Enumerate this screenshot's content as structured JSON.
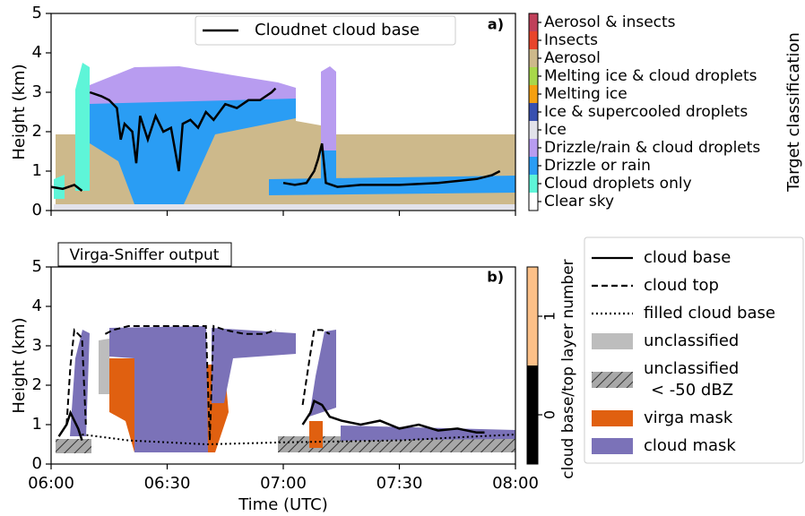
{
  "chart_data": [
    {
      "type": "line",
      "panel_label": "a)",
      "ylabel": "Height (km)",
      "xlim": [
        "06:00",
        "08:00"
      ],
      "ylim": [
        0,
        5
      ],
      "yticks": [
        0,
        1,
        2,
        3,
        4,
        5
      ],
      "legend": "upper center",
      "series": [
        {
          "name": "Cloudnet cloud base",
          "color": "#000000",
          "style": "solid",
          "x": [
            "06:00",
            "06:03",
            "06:06",
            "06:08",
            "06:09",
            "06:10",
            "06:13",
            "06:15",
            "06:17",
            "06:18",
            "06:19",
            "06:21",
            "06:22",
            "06:23",
            "06:25",
            "06:27",
            "06:29",
            "06:31",
            "06:33",
            "06:34",
            "06:36",
            "06:38",
            "06:40",
            "06:42",
            "06:45",
            "06:48",
            "06:51",
            "06:54",
            "06:57",
            "06:58",
            "06:59",
            "07:00",
            "07:03",
            "07:06",
            "07:08",
            "07:09",
            "07:10",
            "07:11",
            "07:14",
            "07:20",
            "07:30",
            "07:40",
            "07:50",
            "07:54",
            "07:56"
          ],
          "values": [
            0.6,
            0.55,
            0.65,
            0.5,
            null,
            3.0,
            2.9,
            2.8,
            2.6,
            1.8,
            2.2,
            2.0,
            1.2,
            2.4,
            1.8,
            2.4,
            2.0,
            2.1,
            1.0,
            2.2,
            2.3,
            2.1,
            2.5,
            2.3,
            2.7,
            2.6,
            2.8,
            2.8,
            3.0,
            3.1,
            null,
            0.7,
            0.65,
            0.7,
            1.0,
            1.3,
            1.7,
            0.7,
            0.6,
            0.65,
            0.65,
            0.7,
            0.8,
            0.9,
            1.0
          ]
        }
      ],
      "colorbar": {
        "label": "Target classification",
        "classes": [
          {
            "name": "Aerosol & insects",
            "color": "#c0405a"
          },
          {
            "name": "Insects",
            "color": "#e8442a"
          },
          {
            "name": "Aerosol",
            "color": "#cdb98b"
          },
          {
            "name": "Melting ice & cloud droplets",
            "color": "#a8d84a"
          },
          {
            "name": "Melting ice",
            "color": "#f5a010"
          },
          {
            "name": "Ice & supercooled droplets",
            "color": "#3850b0"
          },
          {
            "name": "Ice",
            "color": "#e2e2ea"
          },
          {
            "name": "Drizzle/rain & cloud droplets",
            "color": "#b89cf0"
          },
          {
            "name": "Drizzle or rain",
            "color": "#2a9df4"
          },
          {
            "name": "Cloud droplets only",
            "color": "#5ef5d8"
          },
          {
            "name": "Clear sky",
            "color": "#ffffff"
          }
        ]
      }
    },
    {
      "type": "line",
      "panel_label": "b)",
      "title": "Virga-Sniffer output",
      "ylabel": "Height (km)",
      "xlabel": "Time (UTC)",
      "xlim": [
        "06:00",
        "08:00"
      ],
      "xticks": [
        "06:00",
        "06:30",
        "07:00",
        "07:30",
        "08:00"
      ],
      "ylim": [
        0,
        5
      ],
      "yticks": [
        0,
        1,
        2,
        3,
        4,
        5
      ],
      "series": [
        {
          "name": "cloud base",
          "color": "#000000",
          "style": "solid",
          "x": [
            "06:02",
            "06:04",
            "06:05",
            "06:07",
            "06:08",
            "06:09",
            "07:05",
            "07:07",
            "07:08",
            "07:10",
            "07:12",
            "07:15",
            "07:20",
            "07:25",
            "07:30",
            "07:35",
            "07:40",
            "07:45",
            "07:50",
            "07:52"
          ],
          "values": [
            0.7,
            1.0,
            1.3,
            0.9,
            0.6,
            null,
            1.0,
            1.3,
            1.6,
            1.5,
            1.2,
            1.1,
            1.0,
            1.1,
            0.9,
            1.0,
            0.85,
            0.9,
            0.8,
            0.8
          ]
        },
        {
          "name": "cloud top",
          "color": "#000000",
          "style": "dashed",
          "x": [
            "06:04",
            "06:05",
            "06:06",
            "06:08",
            "06:09",
            "06:10",
            "06:14",
            "06:16",
            "06:20",
            "06:30",
            "06:40",
            "06:41",
            "06:42",
            "06:45",
            "06:50",
            "06:55",
            "06:58",
            "06:59",
            "07:05",
            "07:07",
            "07:08",
            "07:10",
            "07:12"
          ],
          "values": [
            1.0,
            2.5,
            3.4,
            3.2,
            1.0,
            null,
            3.3,
            3.4,
            3.5,
            3.5,
            3.5,
            0.6,
            3.5,
            3.4,
            3.3,
            3.3,
            3.4,
            null,
            1.5,
            2.8,
            3.4,
            3.4,
            3.3
          ]
        },
        {
          "name": "filled cloud base",
          "color": "#000000",
          "style": "dotted",
          "x": [
            "06:08",
            "06:20",
            "06:40",
            "07:00",
            "07:30",
            "08:00"
          ],
          "values": [
            0.75,
            0.6,
            0.5,
            0.55,
            0.6,
            0.75
          ]
        }
      ],
      "masks": [
        {
          "name": [
            "unclassified"
          ],
          "color": "#bdbdbd"
        },
        {
          "name": [
            "unclassified",
            "< -50 dBZ"
          ],
          "color": "#a8a8a8",
          "hatch": true
        },
        {
          "name": [
            "virga mask"
          ],
          "color": "#e06010"
        },
        {
          "name": [
            "cloud mask"
          ],
          "color": "#7b72b8"
        }
      ],
      "colorbar": {
        "label": "cloud base/top layer number",
        "lim": [
          -0.5,
          1.5
        ],
        "ticks": [
          0,
          1
        ],
        "colors": [
          "#000000",
          "#fcc088"
        ]
      }
    }
  ]
}
